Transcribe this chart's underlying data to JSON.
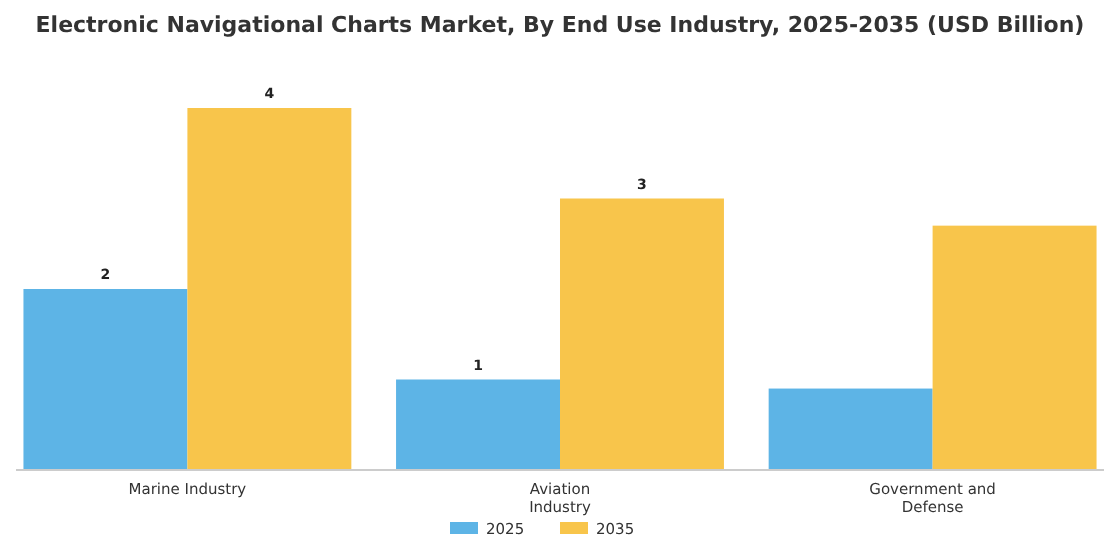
{
  "chart_data": {
    "type": "bar",
    "title": "Electronic Navigational Charts Market, By End Use Industry, 2025-2035 (USD Billion)",
    "categories": [
      "Marine Industry",
      "Aviation Industry",
      "Government and Defense"
    ],
    "legend": "bottom",
    "series": [
      {
        "name": "2025",
        "color": "#5db4e6",
        "values": [
          2,
          1,
          0.9
        ],
        "value_labels": [
          "2",
          "1",
          null
        ]
      },
      {
        "name": "2035",
        "color": "#f8c54b",
        "values": [
          4,
          3,
          2.7
        ],
        "value_labels": [
          "4",
          "3",
          null
        ]
      }
    ]
  }
}
